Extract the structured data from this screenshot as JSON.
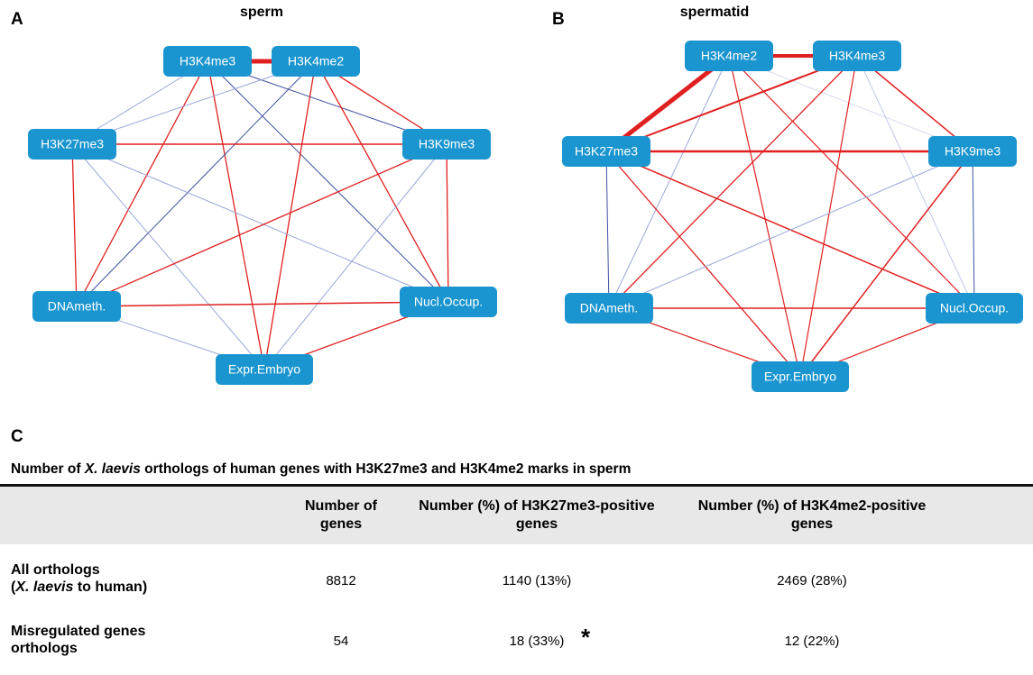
{
  "panels": [
    {
      "letter": "A",
      "title": "sperm",
      "nodes": [
        "H3K4me3",
        "H3K4me2",
        "H3K27me3",
        "H3K9me3",
        "DNAmeth.",
        "Nucl.Occup.",
        "Expr.Embryo"
      ]
    },
    {
      "letter": "B",
      "title": "spermatid",
      "nodes": [
        "H3K4me2",
        "H3K4me3",
        "H3K27me3",
        "H3K9me3",
        "DNAmeth.",
        "Nucl.Occup.",
        "Expr.Embryo"
      ]
    }
  ],
  "table": {
    "letter": "C",
    "title": [
      "Number of ",
      "X. laevis",
      " orthologs of human genes with H3K27me3 and H3K4me2 marks in sperm"
    ],
    "headers": [
      "Number of genes",
      "Number (%) of H3K27me3-positive genes",
      "Number (%) of H3K4me2-positive genes"
    ],
    "rows": [
      {
        "label": [
          "All orthologs",
          "(",
          "X. laevis",
          " to human)"
        ],
        "cells": [
          "8812",
          "1140 (13%)",
          "2469 (28%)"
        ]
      },
      {
        "label": [
          "Misregulated genes orthologs"
        ],
        "cells": [
          "54",
          "18 (33%)",
          "12 (22%)"
        ],
        "note": "*"
      }
    ]
  }
}
